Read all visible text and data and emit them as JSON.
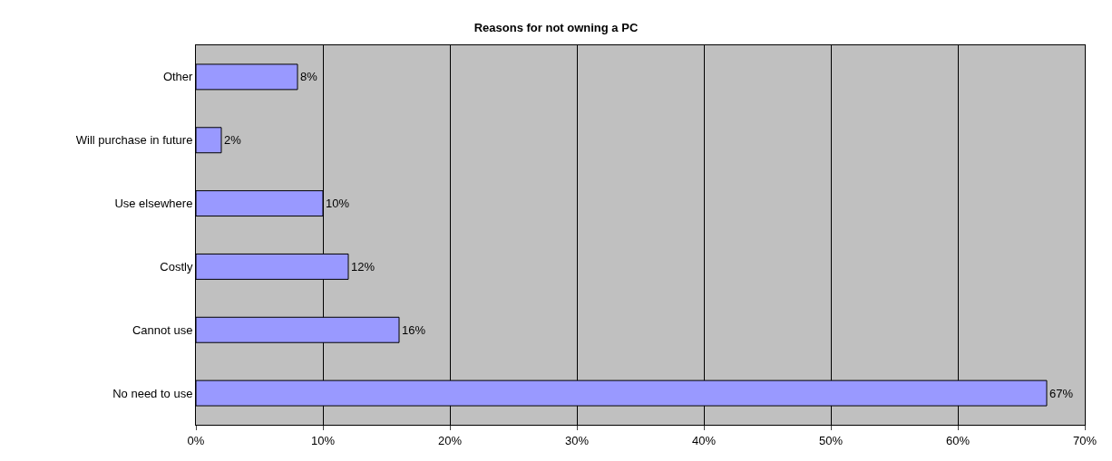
{
  "chart_data": {
    "type": "bar",
    "orientation": "horizontal",
    "title": "Reasons for not owning a PC",
    "categories": [
      "Other",
      "Will purchase in future",
      "Use elsewhere",
      "Costly",
      "Cannot use",
      "No need to use"
    ],
    "values": [
      8,
      2,
      10,
      12,
      16,
      67
    ],
    "value_labels": [
      "8%",
      "2%",
      "10%",
      "12%",
      "16%",
      "67%"
    ],
    "color": "#9999ff",
    "xlim": [
      0,
      70
    ],
    "xticks": [
      {
        "value": 0,
        "label": "0%"
      },
      {
        "value": 10,
        "label": "10%"
      },
      {
        "value": 20,
        "label": "20%"
      },
      {
        "value": 30,
        "label": "30%"
      },
      {
        "value": 40,
        "label": "40%"
      },
      {
        "value": 50,
        "label": "50%"
      },
      {
        "value": 60,
        "label": "60%"
      },
      {
        "value": 70,
        "label": "70%"
      }
    ],
    "grid": "x"
  }
}
